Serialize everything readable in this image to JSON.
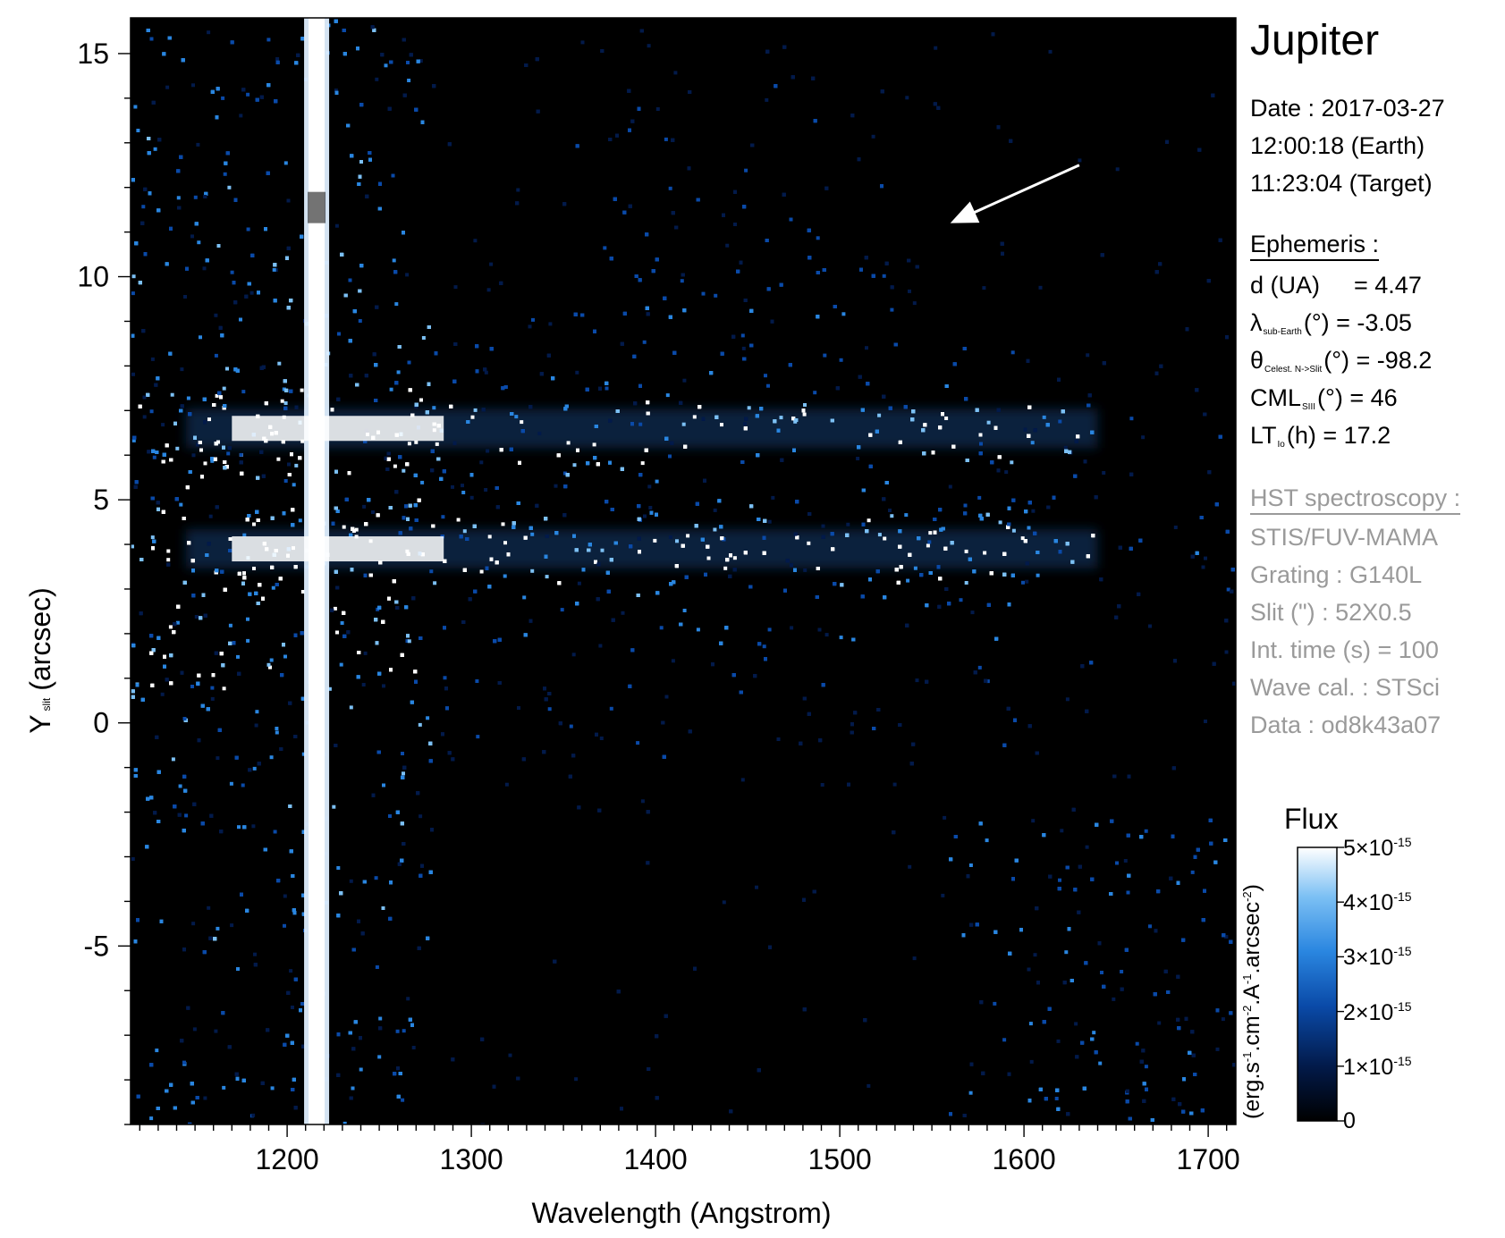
{
  "chart_data": {
    "type": "heatmap",
    "title": "Jupiter",
    "xlabel": "Wavelength (Angstrom)",
    "ylabel_main": "Y",
    "ylabel_sub": "slit",
    "ylabel_unit": "(arcsec)",
    "xlim": [
      1115,
      1715
    ],
    "ylim": [
      -9.0,
      15.8
    ],
    "x_ticks": [
      1200,
      1300,
      1400,
      1500,
      1600,
      1700
    ],
    "y_ticks": [
      15,
      10,
      5,
      0,
      -5
    ],
    "y_tick_labels": [
      "15",
      "10",
      "5",
      "0",
      "-5"
    ],
    "features": {
      "lyman_alpha_line_angstrom": 1216,
      "emission_bands_arcsec": [
        6.6,
        3.9
      ],
      "band_extent_angstrom": [
        1145,
        1640
      ]
    },
    "annotation_arrow": {
      "from": [
        1630,
        12.5
      ],
      "to": [
        1560,
        11.2
      ]
    },
    "colorbar": {
      "title": "Flux",
      "unit_parts": [
        "(erg.s",
        "-1",
        ".cm",
        "-2",
        ".A",
        "-1",
        ".arcsec",
        "-2",
        ")"
      ],
      "range": [
        0,
        5e-15
      ],
      "tick_labels": [
        {
          "mant": "5×10",
          "exp": "-15",
          "value": 5e-15
        },
        {
          "mant": "4×10",
          "exp": "-15",
          "value": 4e-15
        },
        {
          "mant": "3×10",
          "exp": "-15",
          "value": 3e-15
        },
        {
          "mant": "2×10",
          "exp": "-15",
          "value": 2e-15
        },
        {
          "mant": "1×10",
          "exp": "-15",
          "value": 1e-15
        },
        {
          "mant": "0",
          "exp": "",
          "value": 0
        }
      ],
      "colors": [
        "#000000",
        "#021a4a",
        "#0a4aa8",
        "#2a86e0",
        "#7cc0f4",
        "#ffffff"
      ]
    }
  },
  "info": {
    "date_line": "Date : 2017-03-27",
    "earth_time": "12:00:18 (Earth)",
    "target_time": "11:23:04 (Target)",
    "ephemeris_title": "Ephemeris :",
    "d_label": "d (UA)",
    "d_value": "= 4.47",
    "lambda_sym": "λ",
    "lambda_sub": "sub-Earth",
    "lambda_rest": "(°)  = -3.05",
    "theta_sym": "θ",
    "theta_sub": "Celest. N->Slit",
    "theta_rest": "(°) = -98.2",
    "cml_sym": "CML",
    "cml_sub": "SIII",
    "cml_rest": "(°) = 46",
    "lt_sym": "LT",
    "lt_sub": "Io",
    "lt_rest": "(h) = 17.2",
    "hst_title": "HST spectroscopy :",
    "instrument": "STIS/FUV-MAMA",
    "grating": "Grating : G140L",
    "slit": "Slit (\") : 52X0.5",
    "int_time": "Int. time (s) = 100",
    "wave_cal": "Wave cal. : STSci",
    "data_id": "Data : od8k43a07"
  }
}
